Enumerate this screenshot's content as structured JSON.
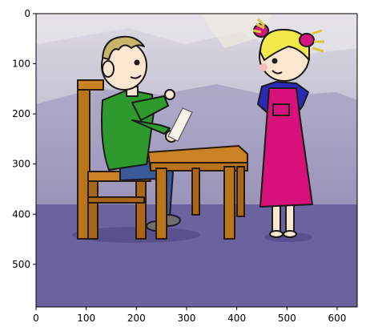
{
  "figure": {
    "type": "image-axes",
    "image_description_name": "boy-at-desk-and-girl-cartoon"
  },
  "axes": {
    "x_ticks": [
      "0",
      "100",
      "200",
      "300",
      "400",
      "500",
      "600"
    ],
    "y_ticks": [
      "0",
      "100",
      "200",
      "300",
      "400",
      "500"
    ],
    "x_tick_values": [
      0,
      100,
      200,
      300,
      400,
      500,
      600
    ],
    "y_tick_values": [
      0,
      100,
      200,
      300,
      400,
      500
    ],
    "x_range": [
      0,
      640
    ],
    "y_range": [
      0,
      585
    ]
  },
  "colors": {
    "background_top": "#d8d6df",
    "background_mid": "#a49fbf",
    "floor": "#6b64a0",
    "boy_shirt": "#2e9a2e",
    "boy_pants": "#3b5a9a",
    "boy_hair": "#c8b46a",
    "girl_dress": "#d8107a",
    "girl_shirt": "#2a2ab8",
    "girl_hair": "#f2e84a",
    "girl_bows": "#d4187e",
    "wood": "#b8741a",
    "skin": "#fde6cf"
  }
}
